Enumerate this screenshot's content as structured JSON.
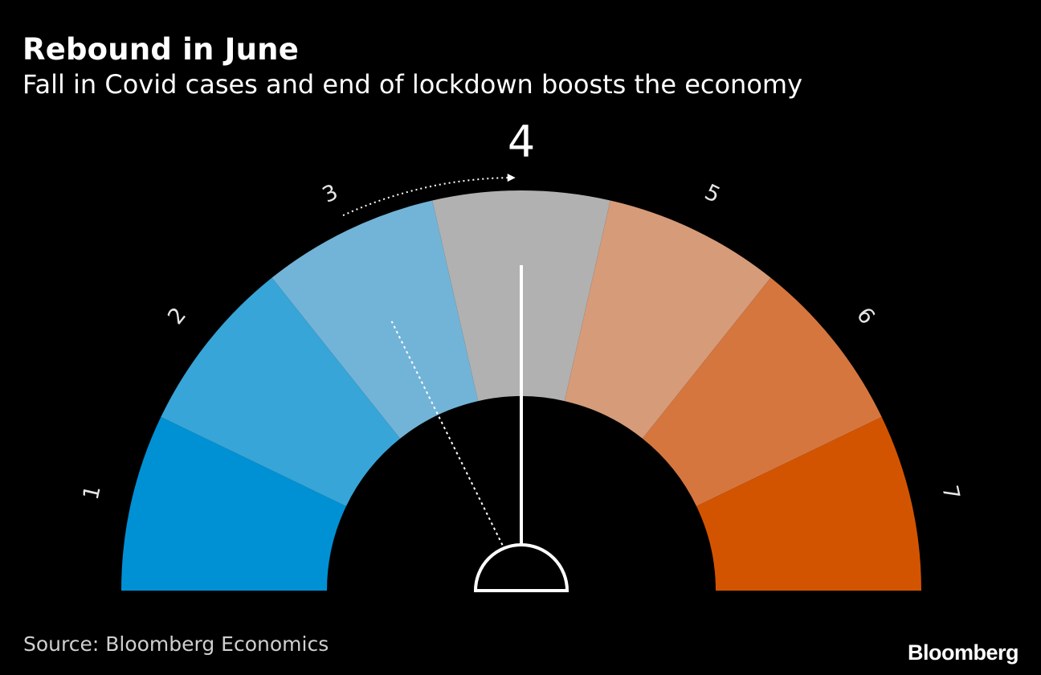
{
  "header": {
    "title": "Rebound in June",
    "subtitle": "Fall in Covid cases and end of lockdown boosts the economy"
  },
  "footer": {
    "source": "Source: Bloomberg Economics",
    "brand": "Bloomberg"
  },
  "chart_data": {
    "type": "gauge",
    "title": "Rebound in June",
    "subtitle": "Fall in Covid cases and end of lockdown boosts the economy",
    "scale_min": 1,
    "scale_max": 7,
    "segments": [
      {
        "label": "1",
        "value": 1,
        "color": "#0091d5"
      },
      {
        "label": "2",
        "value": 2,
        "color": "#37a5d8"
      },
      {
        "label": "3",
        "value": 3,
        "color": "#72b4d7"
      },
      {
        "label": "4",
        "value": 4,
        "color": "#b1b1b1"
      },
      {
        "label": "5",
        "value": 5,
        "color": "#d69b79"
      },
      {
        "label": "6",
        "value": 6,
        "color": "#d6763f"
      },
      {
        "label": "7",
        "value": 7,
        "color": "#d35400"
      }
    ],
    "current_value": 4,
    "current_label": "4",
    "previous_value": 3,
    "needle_color": "#ffffff"
  }
}
